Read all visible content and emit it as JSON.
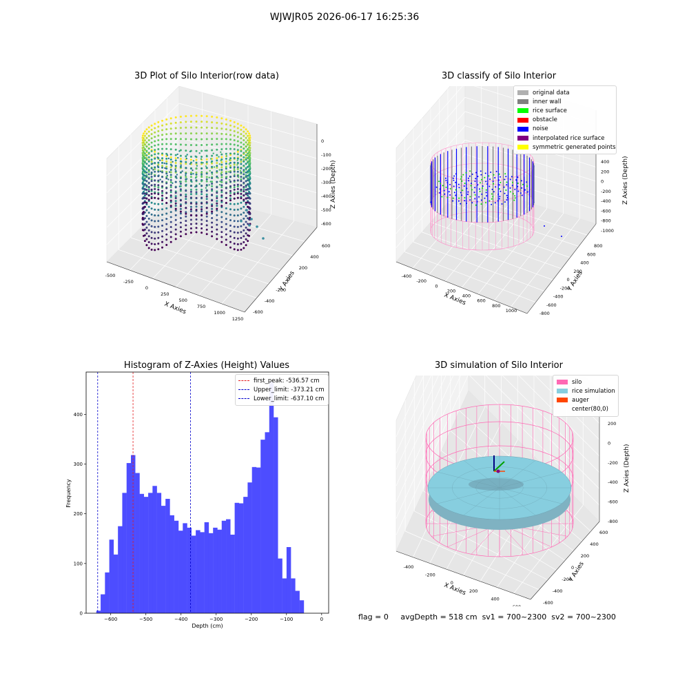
{
  "suptitle": "WJWJR05 2026-06-17 16:25:36",
  "colors": {
    "histogram_bar": "#4d4dff",
    "first_peak": "#e41a1c",
    "limit_line": "#0000cc",
    "silo": "#ff69b4",
    "rice_simulation": "#87cedf",
    "auger": "#ff4500"
  },
  "panel_raw": {
    "title": "3D Plot of Silo Interior(row data)",
    "x_label": "X Axies",
    "y_label": "Y Axies",
    "z_label": "Z Axies (Depth)",
    "x_ticks": [
      "-500",
      "-250",
      "0",
      "250",
      "500",
      "750",
      "1000",
      "1250"
    ],
    "y_ticks": [
      "600",
      "400",
      "200",
      "0",
      "-200",
      "-400",
      "-600"
    ],
    "z_ticks": [
      "0",
      "-100",
      "-200",
      "-300",
      "-400",
      "-500",
      "-600"
    ],
    "colormap": "viridis"
  },
  "panel_classify": {
    "title": "3D classify of Silo Interior",
    "x_label": "X Axies",
    "y_label": "Y Axies",
    "z_label": "Z Axies (Depth)",
    "x_ticks": [
      "-400",
      "-200",
      "0",
      "200",
      "400",
      "600",
      "800",
      "1000"
    ],
    "y_ticks": [
      "800",
      "600",
      "400",
      "200",
      "0",
      "-200",
      "-400",
      "-600",
      "-800"
    ],
    "z_ticks": [
      "400",
      "200",
      "0",
      "-200",
      "-400",
      "-600",
      "-800",
      "-1000"
    ],
    "legend": [
      {
        "label": "original data",
        "color": "#b0b0b0"
      },
      {
        "label": "inner wall",
        "color": "#808080"
      },
      {
        "label": "rice surface",
        "color": "#00ff00"
      },
      {
        "label": "obstacle",
        "color": "#ff0000"
      },
      {
        "label": "noise",
        "color": "#0000ff"
      },
      {
        "label": "interpolated rice surface",
        "color": "#800080"
      },
      {
        "label": "symmetric generated points",
        "color": "#ffff00"
      }
    ]
  },
  "panel_sim": {
    "title": "3D simulation of Silo Interior",
    "x_label": "X Axies",
    "y_label": "Y Axies",
    "z_label": "Z Axies (Depth)",
    "x_ticks": [
      "-400",
      "-200",
      "0",
      "200",
      "400",
      "600"
    ],
    "y_ticks": [
      "600",
      "400",
      "200",
      "0",
      "-200",
      "-400",
      "-600"
    ],
    "z_ticks": [
      "200",
      "0",
      "-200",
      "-400",
      "-600",
      "-800"
    ],
    "legend": [
      {
        "label": "silo",
        "color": "#ff69b4"
      },
      {
        "label": "rice simulation",
        "color": "#87cedf"
      },
      {
        "label": "auger",
        "color": "#ff4500"
      },
      {
        "label": "center(80,0)",
        "color": ""
      }
    ],
    "info": {
      "flag": "flag = 0",
      "avg_depth": "avgDepth = 518 cm",
      "sv1": "sv1 = 700~2300",
      "sv2": "sv2 = 700~2300"
    }
  },
  "chart_data": {
    "type": "bar",
    "title": "Histogram of Z-Axies (Height) Values",
    "xlabel": "Depth (cm)",
    "ylabel": "Frequency",
    "xlim": [
      -670,
      20
    ],
    "ylim": [
      0,
      485
    ],
    "x_ticks": [
      -600,
      -500,
      -400,
      -300,
      -200,
      -100,
      0
    ],
    "y_ticks": [
      0,
      100,
      200,
      300,
      400
    ],
    "bin_start": -641,
    "bin_width": 12.3,
    "values": [
      5,
      38,
      82,
      148,
      118,
      175,
      242,
      302,
      318,
      282,
      240,
      234,
      242,
      256,
      242,
      216,
      230,
      197,
      186,
      166,
      181,
      172,
      156,
      167,
      163,
      183,
      161,
      172,
      168,
      186,
      189,
      158,
      222,
      221,
      234,
      263,
      294,
      293,
      349,
      364,
      465,
      394,
      110,
      70,
      133,
      70,
      45,
      26
    ],
    "vlines": [
      {
        "label": "first_peak: -536.57 cm",
        "x": -536.57,
        "color": "#e41a1c"
      },
      {
        "label": "Upper_limit: -373.21 cm",
        "x": -373.21,
        "color": "#0000cc"
      },
      {
        "label": "Lower_limit: -637.10 cm",
        "x": -637.1,
        "color": "#0000cc"
      }
    ],
    "legend_position": "top-right",
    "grid": false
  }
}
